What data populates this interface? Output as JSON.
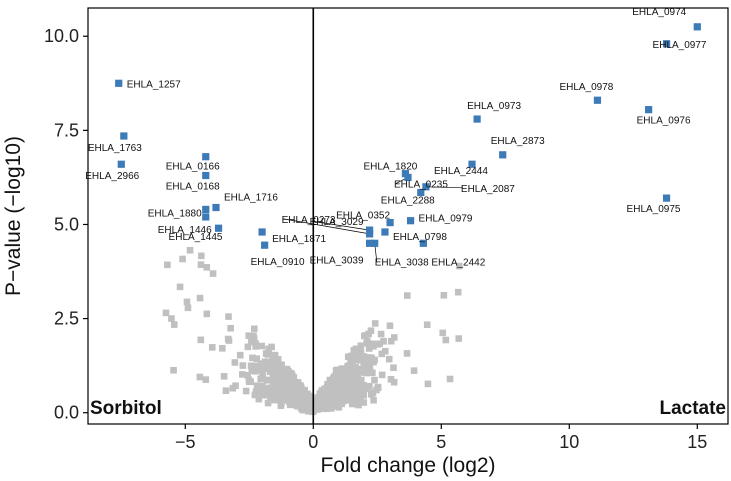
{
  "chart_data": {
    "type": "scatter",
    "xlabel": "Fold change (log2)",
    "ylabel": "P−value (−log10)",
    "xlim": [
      -8.8,
      16.2
    ],
    "ylim": [
      -0.3,
      10.75
    ],
    "x_ticks": [
      -5,
      0,
      5,
      10,
      15
    ],
    "x_tick_labels": [
      "−5",
      "0",
      "5",
      "10",
      "15"
    ],
    "y_ticks": [
      0,
      2.5,
      5,
      7.5,
      10
    ],
    "y_tick_labels": [
      "0.0",
      "2.5",
      "5.0",
      "7.5",
      "10.0"
    ],
    "grid": false,
    "vertical_reference_line_x": 0,
    "left_label": "Sorbitol",
    "right_label": "Lactate",
    "colors": {
      "significant": "#3d7ab8",
      "background": "#c0c0c0",
      "axis": "#000000"
    },
    "background_points_note": "",
    "significant_points": [
      {
        "label": "EHLA_0974",
        "x": 15.0,
        "y": 10.25
      },
      {
        "label": "EHLA_0977",
        "x": 13.8,
        "y": 9.8
      },
      {
        "label": "EHLA_1257",
        "x": -7.6,
        "y": 8.75
      },
      {
        "label": "EHLA_0978",
        "x": 11.1,
        "y": 8.3
      },
      {
        "label": "EHLA_0976",
        "x": 13.1,
        "y": 8.05
      },
      {
        "label": "EHLA_0973",
        "x": 6.4,
        "y": 7.8
      },
      {
        "label": "EHLA_1763",
        "x": -7.4,
        "y": 7.35
      },
      {
        "label": "EHLA_2873",
        "x": 7.4,
        "y": 6.85
      },
      {
        "label": "EHLA_0166",
        "x": -4.2,
        "y": 6.8
      },
      {
        "label": "EHLA_2966",
        "x": -7.5,
        "y": 6.6
      },
      {
        "label": "EHLA_2444",
        "x": 6.2,
        "y": 6.6
      },
      {
        "label": "EHLA_1820",
        "x": 3.6,
        "y": 6.35
      },
      {
        "label": "EHLA_0168",
        "x": -4.2,
        "y": 6.3
      },
      {
        "label": "EHLA_0235",
        "x": 3.7,
        "y": 6.25
      },
      {
        "label": "EHLA_2087",
        "x": 4.4,
        "y": 6.0
      },
      {
        "label": "EHLA_2288",
        "x": 4.2,
        "y": 5.85
      },
      {
        "label": "EHLA_0975",
        "x": 13.8,
        "y": 5.7
      },
      {
        "label": "EHLA_1716",
        "x": -3.8,
        "y": 5.45
      },
      {
        "label": "EHLA_1880",
        "x": -4.2,
        "y": 5.4
      },
      {
        "label": "EHLA_1446",
        "x": -4.2,
        "y": 5.2
      },
      {
        "label": "EHLA_0352",
        "x": 3.0,
        "y": 5.05
      },
      {
        "label": "EHLA_0979",
        "x": 3.8,
        "y": 5.1
      },
      {
        "label": "EHLA_3029",
        "x": 2.2,
        "y": 4.85
      },
      {
        "label": "EHLA_0273",
        "x": 2.2,
        "y": 4.75
      },
      {
        "label": "EHLA_0798",
        "x": 2.8,
        "y": 4.8
      },
      {
        "label": "EHLA_1445",
        "x": -3.7,
        "y": 4.9
      },
      {
        "label": "EHLA_1871",
        "x": -2.0,
        "y": 4.8
      },
      {
        "label": "EHLA_3039",
        "x": 2.2,
        "y": 4.5
      },
      {
        "label": "EHLA_3038",
        "x": 2.4,
        "y": 4.5
      },
      {
        "label": "EHLA_2442",
        "x": 4.3,
        "y": 4.5
      },
      {
        "label": "EHLA_0910",
        "x": -1.9,
        "y": 4.45
      }
    ]
  }
}
